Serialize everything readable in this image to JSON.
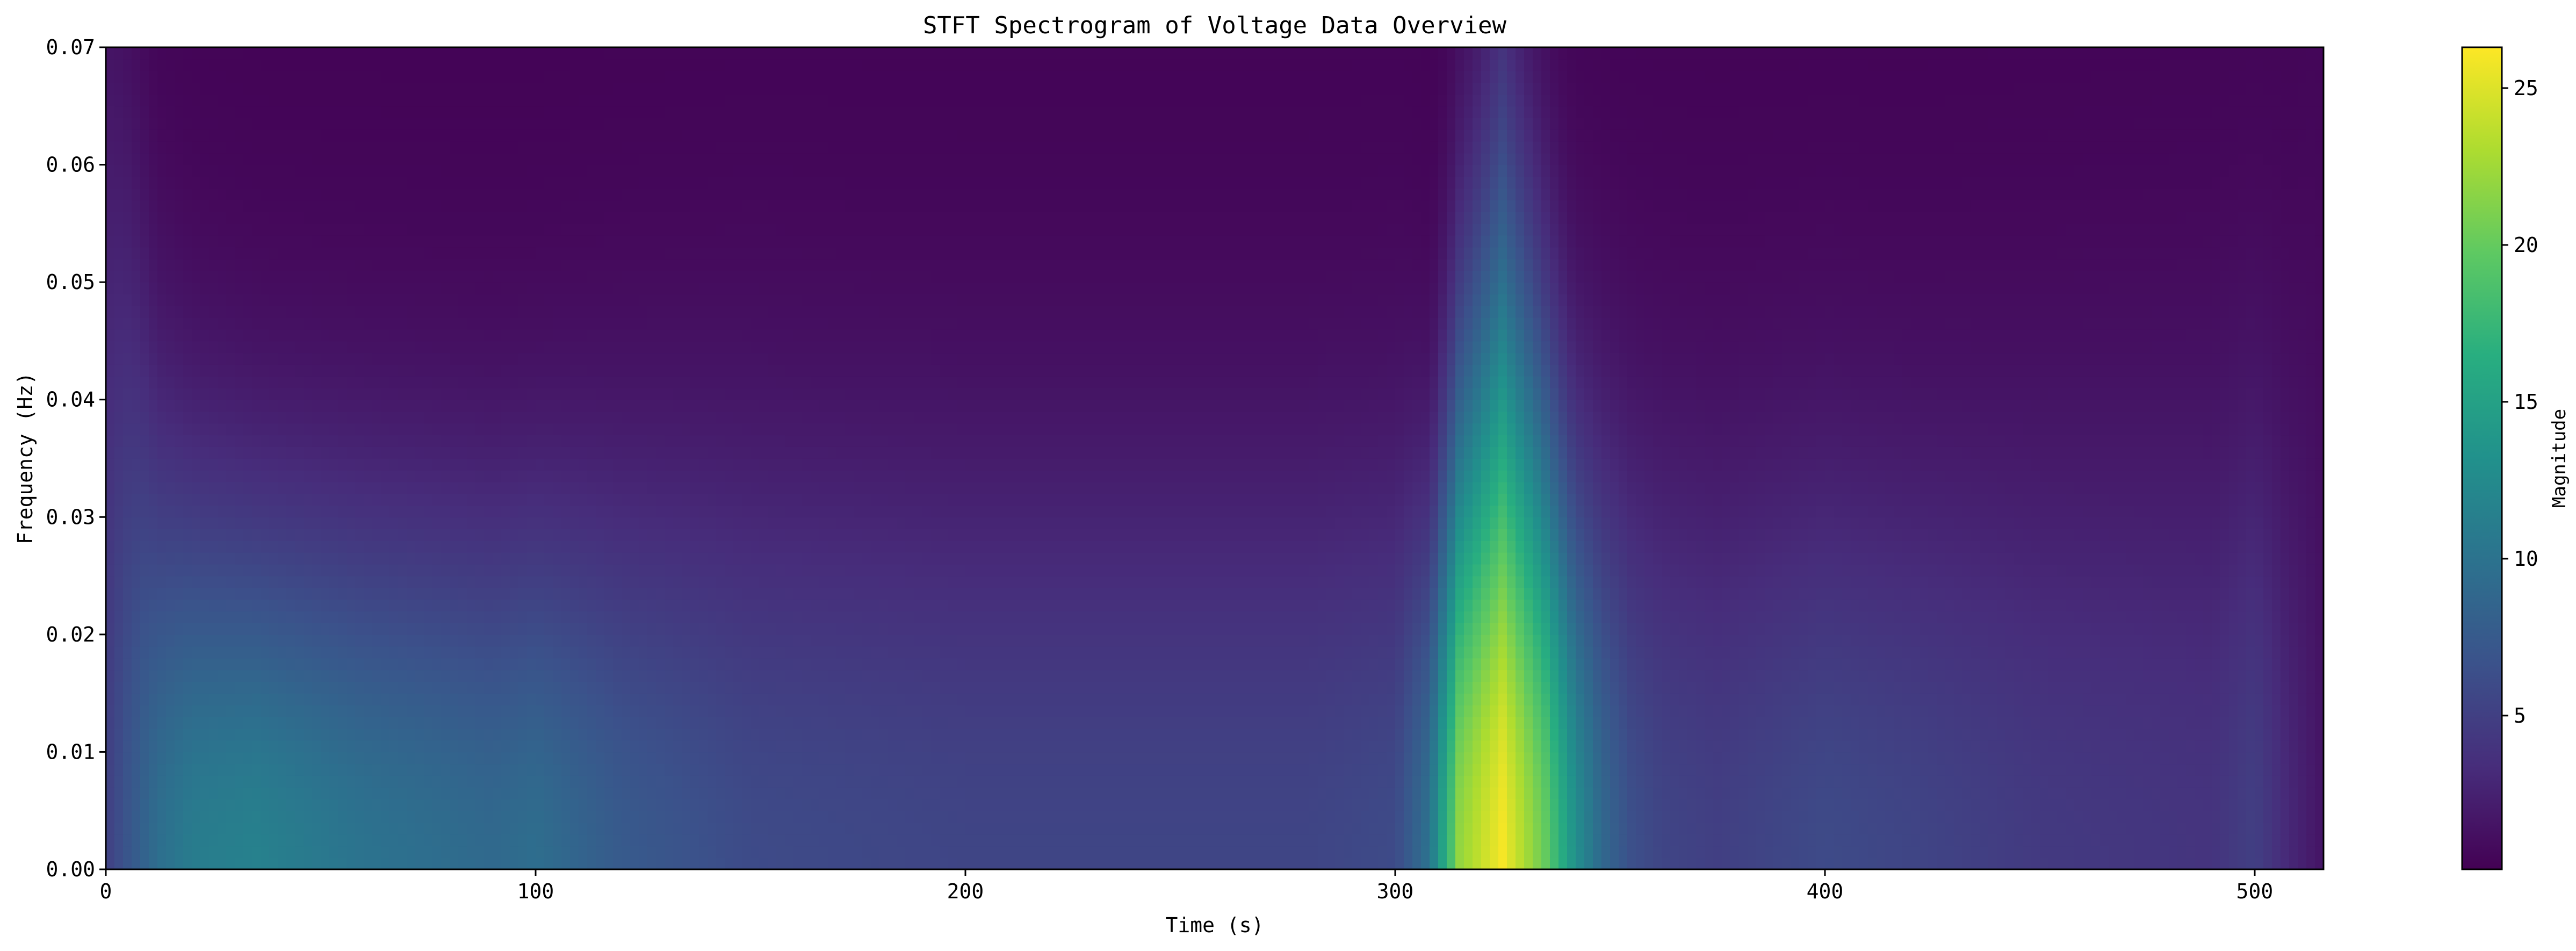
{
  "chart_data": {
    "type": "heatmap",
    "title": "STFT Spectrogram of Voltage Data Overview",
    "xlabel": "Time (s)",
    "ylabel": "Frequency (Hz)",
    "colorbar_label": "Magnitude",
    "colormap": "viridis",
    "xlim": [
      0,
      516
    ],
    "ylim": [
      0,
      0.07
    ],
    "color_range": [
      0.1,
      26.3
    ],
    "x_ticks": [
      0,
      100,
      200,
      300,
      400,
      500
    ],
    "x_tick_labels": [
      "0",
      "100",
      "200",
      "300",
      "400",
      "500"
    ],
    "y_ticks": [
      0.0,
      0.01,
      0.02,
      0.03,
      0.04,
      0.05,
      0.06,
      0.07
    ],
    "y_tick_labels": [
      "0.00",
      "0.01",
      "0.02",
      "0.03",
      "0.04",
      "0.05",
      "0.06",
      "0.07"
    ],
    "colorbar_ticks": [
      5,
      10,
      15,
      20,
      25
    ],
    "colorbar_tick_labels": [
      "5",
      "10",
      "15",
      "20",
      "25"
    ],
    "grid": false,
    "time_profile": {
      "t": [
        0,
        5,
        12,
        20,
        35,
        60,
        90,
        100,
        120,
        150,
        200,
        250,
        280,
        300,
        308,
        315,
        325,
        335,
        342,
        348,
        355,
        362,
        375,
        400,
        420,
        450,
        490,
        500,
        508,
        516
      ],
      "low_freq_magnitude": [
        5,
        7,
        9.5,
        11,
        11.5,
        10,
        9,
        9.5,
        7.5,
        6,
        5.5,
        5.5,
        5.5,
        6,
        10,
        22,
        26,
        20,
        13,
        9,
        6.5,
        5.5,
        5,
        6,
        5.5,
        4.5,
        4,
        5,
        3,
        1.5
      ],
      "spread_hz": [
        0.06,
        0.05,
        0.036,
        0.032,
        0.03,
        0.03,
        0.03,
        0.03,
        0.032,
        0.034,
        0.034,
        0.034,
        0.034,
        0.034,
        0.03,
        0.04,
        0.05,
        0.04,
        0.034,
        0.034,
        0.034,
        0.034,
        0.034,
        0.034,
        0.034,
        0.036,
        0.038,
        0.038,
        0.04,
        0.05
      ]
    }
  }
}
